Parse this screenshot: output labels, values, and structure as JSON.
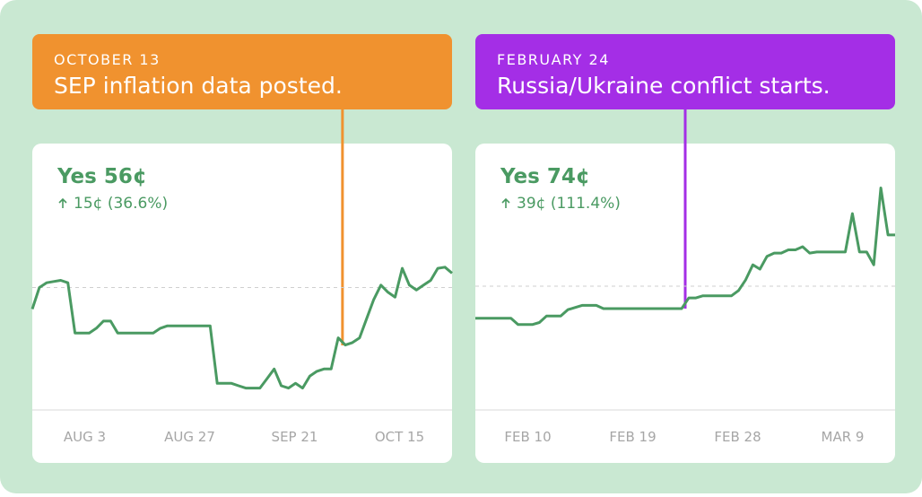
{
  "chart_data": [
    {
      "type": "line",
      "title": "Yes 56¢",
      "subtitle": "15¢ (36.6%)",
      "annotation": {
        "date": "OCTOBER 13",
        "text": "SEP inflation data posted.",
        "color": "#f0922f"
      },
      "series": [
        {
          "color": "#4a9a62",
          "values": [
            41,
            50,
            52,
            52.5,
            53,
            52,
            31,
            31,
            31,
            33,
            36,
            36,
            31,
            31,
            31,
            31,
            31,
            31,
            33,
            34,
            34,
            34,
            34,
            34,
            34,
            34,
            10,
            10,
            10,
            9,
            8,
            8,
            8,
            12,
            16,
            9,
            8,
            10,
            8,
            13,
            15,
            16,
            16,
            29,
            26,
            27,
            29,
            37,
            45,
            51,
            48,
            46,
            58,
            51,
            49,
            51,
            53,
            58,
            58.5,
            56
          ]
        }
      ],
      "x_labels": [
        "AUG 3",
        "AUG 27",
        "SEP 21",
        "OCT 15"
      ],
      "ylim": [
        0,
        100
      ],
      "reference_line": 50
    },
    {
      "type": "line",
      "title": "Yes 74¢",
      "subtitle": "39¢ (111.4%)",
      "annotation": {
        "date": "FEBRUARY 24",
        "text": "Russia/Ukraine conflict starts.",
        "color": "#a42ee6"
      },
      "series": [
        {
          "color": "#4a9a62",
          "values": [
            35,
            35,
            35,
            35,
            35,
            35,
            32,
            32,
            32,
            33,
            36,
            36,
            36,
            39,
            40,
            41,
            41,
            41,
            39.5,
            39.5,
            39.5,
            39.5,
            39.5,
            39.5,
            39.5,
            39.5,
            39.5,
            39.5,
            39.5,
            39.5,
            44.5,
            44.5,
            45.5,
            45.5,
            45.5,
            45.5,
            45.5,
            48,
            53,
            60,
            58,
            64,
            65.5,
            65.5,
            67,
            67,
            68.5,
            65.5,
            66,
            66,
            66,
            66,
            66,
            84,
            66,
            66,
            60,
            96,
            74,
            74
          ]
        }
      ],
      "x_labels": [
        "FEB 10",
        "FEB 19",
        "FEB 28",
        "MAR 9"
      ],
      "ylim": [
        0,
        100
      ],
      "reference_line": 50
    }
  ]
}
